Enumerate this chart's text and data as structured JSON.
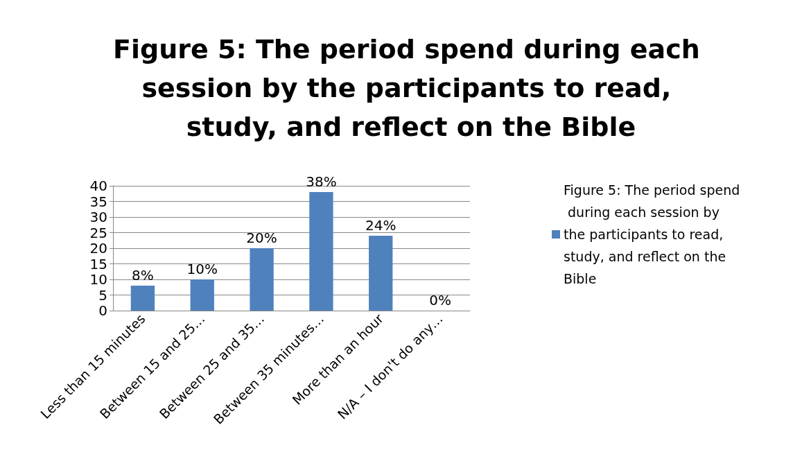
{
  "chart_data": {
    "type": "bar",
    "title": "Figure 5: The period spend during each session by the participants to read, study, and reflect on the Bible",
    "categories": [
      "Less than 15 minutes",
      "Between 15 and 25…",
      "Between 25 and 35…",
      "Between 35 minutes…",
      "More than an hour",
      "N/A – I don't do any…"
    ],
    "series": [
      {
        "name": "Figure 5: The period spend during each session by the participants to read, study, and reflect on the Bible",
        "color": "#4f81bd",
        "values": [
          8,
          10,
          20,
          38,
          24,
          0
        ],
        "value_labels": [
          "8%",
          "10%",
          "20%",
          "38%",
          "24%",
          "0%"
        ]
      }
    ],
    "ylim": [
      0,
      40
    ],
    "yticks": [
      0,
      5,
      10,
      15,
      20,
      25,
      30,
      35,
      40
    ],
    "grid": "y",
    "legend": "right"
  }
}
